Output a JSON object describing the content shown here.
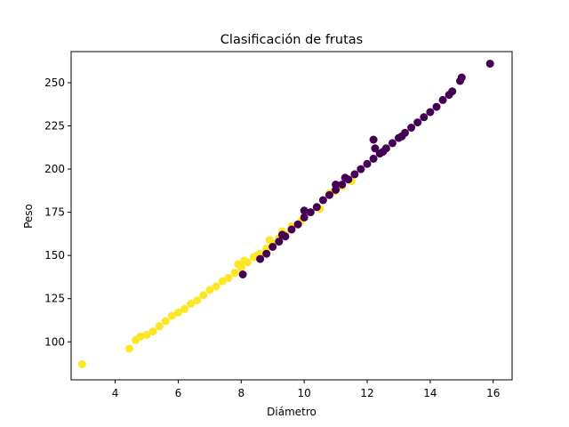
{
  "chart_data": {
    "type": "scatter",
    "title": "Clasificación de frutas",
    "xlabel": "Diámetro",
    "ylabel": "Peso",
    "xlim": [
      2.6,
      16.6
    ],
    "ylim": [
      78,
      268
    ],
    "xticks": [
      4,
      6,
      8,
      10,
      12,
      14,
      16
    ],
    "yticks": [
      100,
      125,
      150,
      175,
      200,
      225,
      250
    ],
    "grid": false,
    "series": [
      {
        "color": "#fde725",
        "points": [
          [
            2.95,
            87
          ],
          [
            4.45,
            96
          ],
          [
            4.65,
            101
          ],
          [
            4.8,
            103
          ],
          [
            5.0,
            104
          ],
          [
            5.2,
            106
          ],
          [
            5.4,
            109
          ],
          [
            5.6,
            112
          ],
          [
            5.8,
            115
          ],
          [
            6.0,
            117
          ],
          [
            6.2,
            119
          ],
          [
            6.4,
            122
          ],
          [
            6.6,
            124
          ],
          [
            6.8,
            127
          ],
          [
            7.0,
            130
          ],
          [
            7.2,
            132
          ],
          [
            7.4,
            135
          ],
          [
            7.6,
            137
          ],
          [
            7.8,
            140
          ],
          [
            8.0,
            143
          ],
          [
            8.2,
            146
          ],
          [
            8.4,
            149
          ],
          [
            8.6,
            151
          ],
          [
            8.8,
            154
          ],
          [
            9.0,
            157
          ],
          [
            9.2,
            160
          ],
          [
            9.4,
            162
          ],
          [
            9.6,
            165
          ],
          [
            9.8,
            168
          ],
          [
            10.0,
            172
          ],
          [
            10.2,
            175
          ],
          [
            10.4,
            178
          ],
          [
            9.9,
            170
          ],
          [
            10.5,
            177
          ],
          [
            10.8,
            186
          ],
          [
            11.2,
            190
          ],
          [
            11.5,
            193
          ],
          [
            9.6,
            167
          ],
          [
            9.3,
            164
          ],
          [
            8.9,
            159
          ],
          [
            8.5,
            150
          ],
          [
            8.1,
            147
          ],
          [
            7.9,
            145
          ],
          [
            10.95,
            187
          ]
        ]
      },
      {
        "color": "#440154",
        "points": [
          [
            8.05,
            139
          ],
          [
            8.6,
            148
          ],
          [
            8.8,
            151
          ],
          [
            9.0,
            155
          ],
          [
            9.2,
            158
          ],
          [
            9.4,
            161
          ],
          [
            9.6,
            165
          ],
          [
            9.8,
            168
          ],
          [
            10.0,
            172
          ],
          [
            10.2,
            175
          ],
          [
            10.4,
            178
          ],
          [
            10.6,
            182
          ],
          [
            10.8,
            185
          ],
          [
            11.0,
            188
          ],
          [
            11.2,
            191
          ],
          [
            11.4,
            194
          ],
          [
            11.6,
            197
          ],
          [
            11.8,
            200
          ],
          [
            12.0,
            203
          ],
          [
            12.2,
            206
          ],
          [
            12.4,
            209
          ],
          [
            12.6,
            212
          ],
          [
            12.8,
            215
          ],
          [
            13.0,
            218
          ],
          [
            13.2,
            221
          ],
          [
            13.4,
            224
          ],
          [
            13.6,
            227
          ],
          [
            13.8,
            230
          ],
          [
            14.0,
            233
          ],
          [
            14.2,
            236
          ],
          [
            14.4,
            240
          ],
          [
            14.6,
            243
          ],
          [
            14.7,
            245
          ],
          [
            14.95,
            251
          ],
          [
            15.0,
            253
          ],
          [
            15.9,
            261
          ],
          [
            12.2,
            217
          ],
          [
            12.25,
            212
          ],
          [
            9.3,
            162
          ],
          [
            10.0,
            176
          ],
          [
            11.0,
            191
          ],
          [
            11.3,
            195
          ],
          [
            12.5,
            210
          ],
          [
            13.1,
            219
          ]
        ]
      }
    ]
  }
}
